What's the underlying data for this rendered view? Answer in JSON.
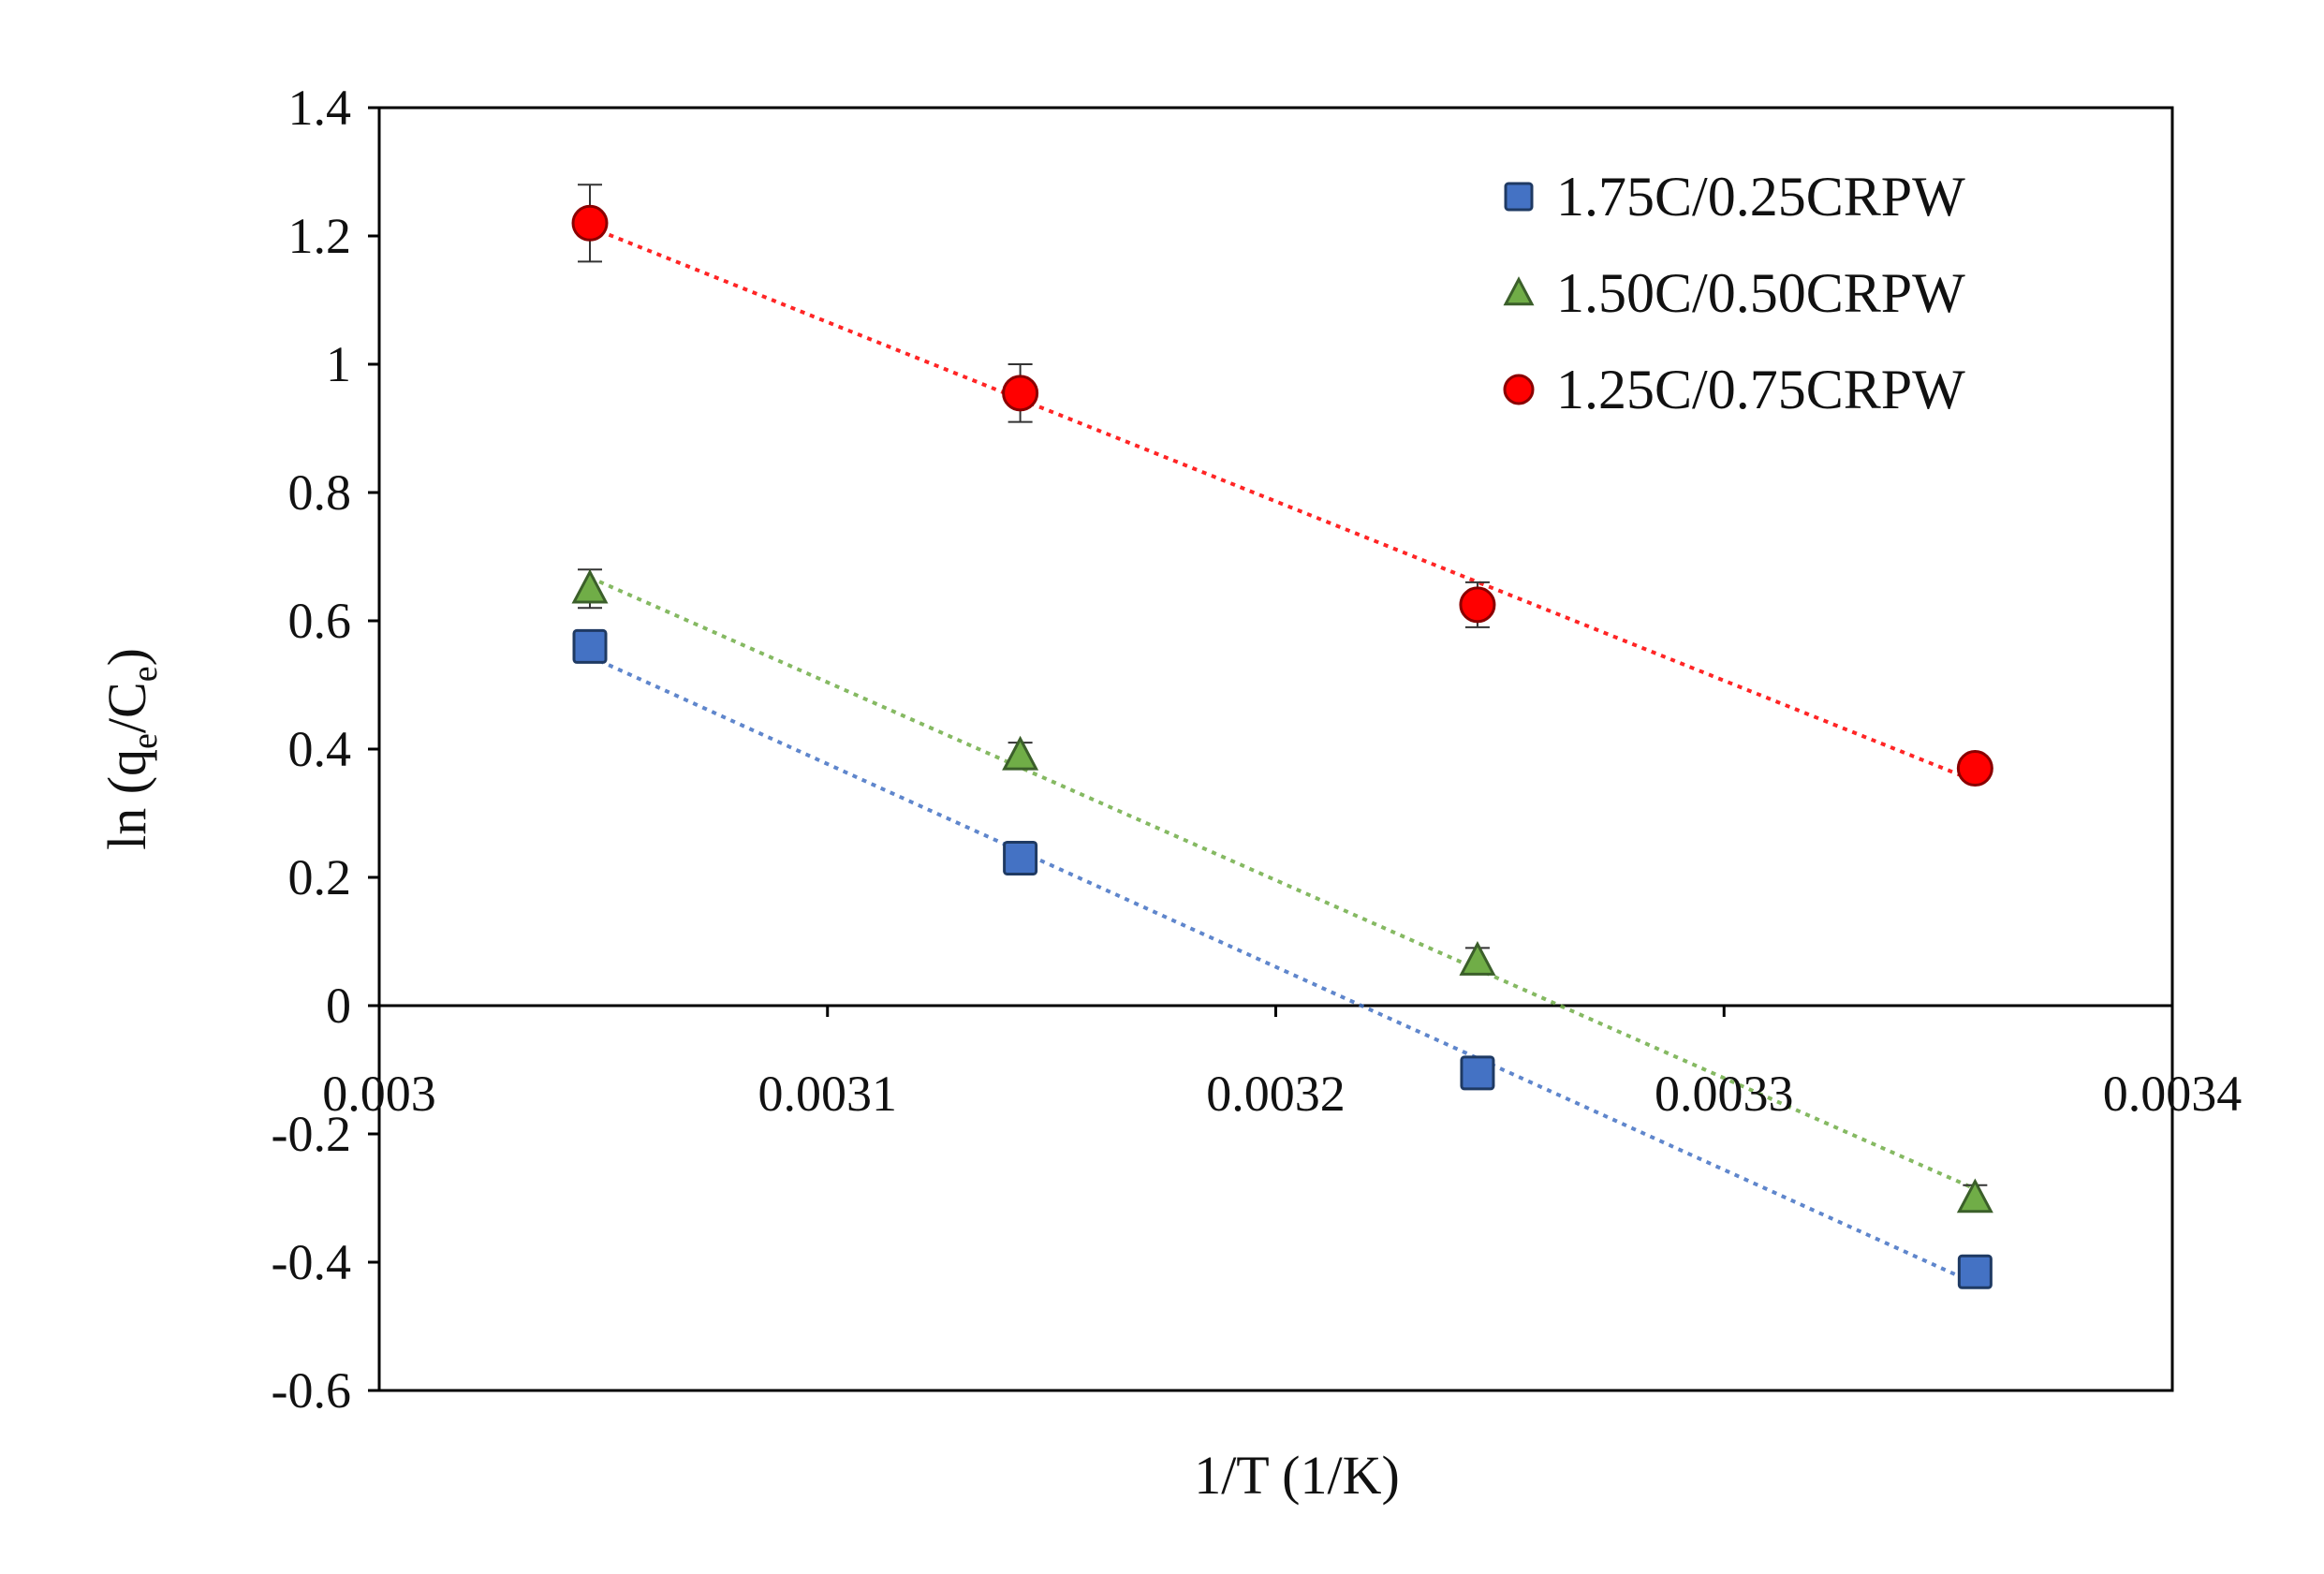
{
  "chart_data": {
    "type": "scatter",
    "title": "",
    "xlabel": "1/T (1/K)",
    "ylabel": {
      "prefix": "ln (q",
      "sub1": "e",
      "mid": "/C",
      "sub2": "e",
      "suffix": ")"
    },
    "xlim": [
      0.003,
      0.0034
    ],
    "ylim": [
      -0.6,
      1.4
    ],
    "x_ticks": [
      0.003,
      0.0031,
      0.0032,
      0.0033,
      0.0034
    ],
    "x_tick_labels": [
      "0.003",
      "0.0031",
      "0.0032",
      "0.0033",
      "0.0034"
    ],
    "y_ticks": [
      -0.6,
      -0.4,
      -0.2,
      0,
      0.2,
      0.4,
      0.6,
      0.8,
      1,
      1.2,
      1.4
    ],
    "y_tick_labels": [
      "-0.6",
      "-0.4",
      "-0.2",
      "0",
      "0.2",
      "0.4",
      "0.6",
      "0.8",
      "1",
      "1.2",
      "1.4"
    ],
    "grid": false,
    "legend_position": "top-right",
    "trendlines": "dotted linear",
    "series": [
      {
        "name": "1.75C/0.25CRPW",
        "marker": "square",
        "color": "#4472C4",
        "x": [
          0.003047,
          0.003143,
          0.003245,
          0.003356
        ],
        "y": [
          0.56,
          0.23,
          -0.105,
          -0.415
        ]
      },
      {
        "name": "1.50C/0.50CRPW",
        "marker": "triangle",
        "color": "#70AD47",
        "x": [
          0.003047,
          0.003143,
          0.003245,
          0.003356
        ],
        "y": [
          0.65,
          0.39,
          0.07,
          -0.3
        ],
        "error": [
          0.03,
          0.02,
          0.02,
          0.02
        ]
      },
      {
        "name": "1.25C/0.75CRPW",
        "marker": "circle",
        "color": "#FF0000",
        "x": [
          0.003047,
          0.003143,
          0.003245,
          0.003356
        ],
        "y": [
          1.22,
          0.955,
          0.625,
          0.37
        ],
        "error": [
          0.06,
          0.045,
          0.035,
          0.015
        ]
      }
    ]
  }
}
